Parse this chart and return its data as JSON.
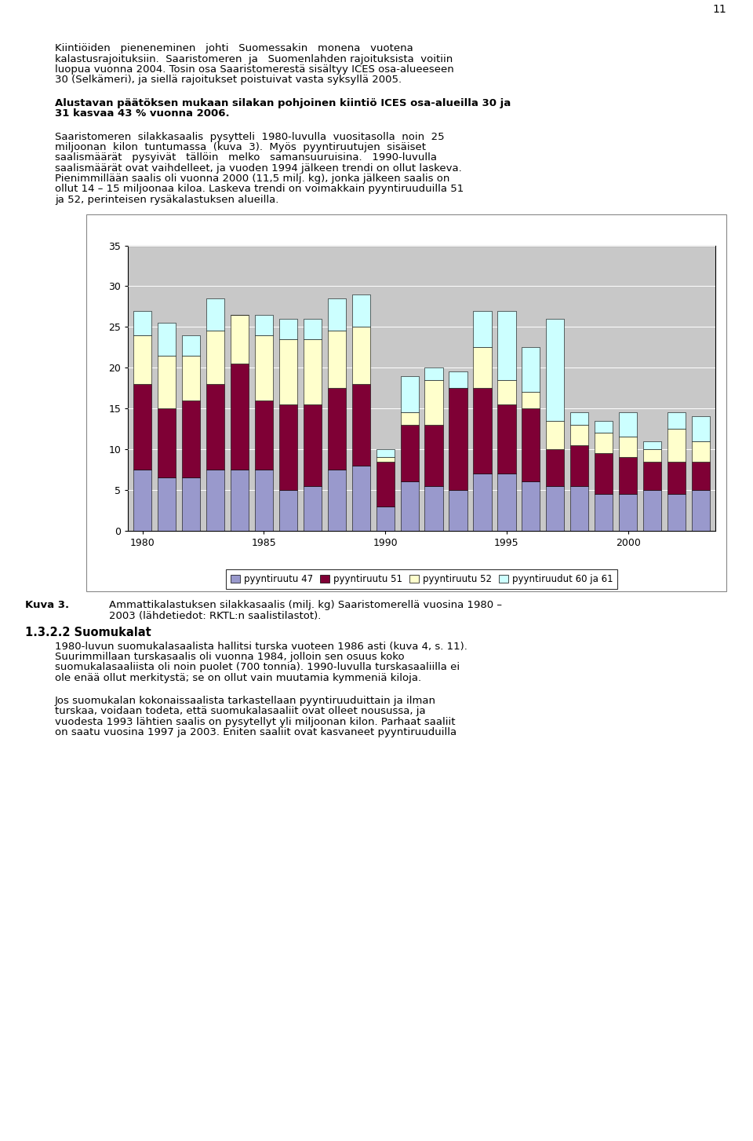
{
  "years": [
    1980,
    1981,
    1982,
    1983,
    1984,
    1985,
    1986,
    1987,
    1988,
    1989,
    1990,
    1991,
    1992,
    1993,
    1994,
    1995,
    1996,
    1997,
    1998,
    1999,
    2000,
    2001,
    2002,
    2003
  ],
  "pyyntiruutu_47": [
    7.5,
    6.5,
    6.5,
    7.5,
    7.5,
    7.5,
    5.0,
    5.5,
    7.5,
    8.0,
    3.0,
    6.0,
    5.5,
    5.0,
    7.0,
    7.0,
    6.0,
    5.5,
    5.5,
    4.5,
    4.5,
    5.0,
    4.5,
    5.0
  ],
  "pyyntiruutu_51": [
    10.5,
    8.5,
    9.5,
    10.5,
    13.0,
    8.5,
    10.5,
    10.0,
    10.0,
    10.0,
    5.5,
    7.0,
    7.5,
    12.5,
    10.5,
    8.5,
    9.0,
    4.5,
    5.0,
    5.0,
    4.5,
    3.5,
    4.0,
    3.5
  ],
  "pyyntiruutu_52": [
    6.0,
    6.5,
    5.5,
    6.5,
    6.0,
    8.0,
    8.0,
    8.0,
    7.0,
    7.0,
    0.5,
    1.5,
    5.5,
    0.0,
    5.0,
    3.0,
    2.0,
    3.5,
    2.5,
    2.5,
    2.5,
    1.5,
    4.0,
    2.5
  ],
  "pyyntiruutu_60_61": [
    3.0,
    4.0,
    2.5,
    4.0,
    0.0,
    2.5,
    2.5,
    2.5,
    4.0,
    4.0,
    1.0,
    4.5,
    1.5,
    2.0,
    4.5,
    8.5,
    5.5,
    12.5,
    1.5,
    1.5,
    3.0,
    1.0,
    2.0,
    3.0
  ],
  "colors": {
    "pyyntiruutu_47": "#9999CC",
    "pyyntiruutu_51": "#7F0035",
    "pyyntiruutu_52": "#FFFFCC",
    "pyyntiruutu_60_61": "#CCFFFF"
  },
  "legend_labels": [
    "pyyntiruutu 47",
    "pyyntiruutu 51",
    "pyyntiruutu 52",
    "pyyntiruudut 60 ja 61"
  ],
  "ylim": [
    0,
    35
  ],
  "yticks": [
    0,
    5,
    10,
    15,
    20,
    25,
    30,
    35
  ],
  "xtick_labels": [
    "1980",
    "1985",
    "1990",
    "1995",
    "2000"
  ],
  "chart_bg": "#C8C8C8",
  "outer_bg": "#FFFFFF",
  "bar_edge_color": "#000000",
  "bar_width": 0.75,
  "page_number": "11"
}
